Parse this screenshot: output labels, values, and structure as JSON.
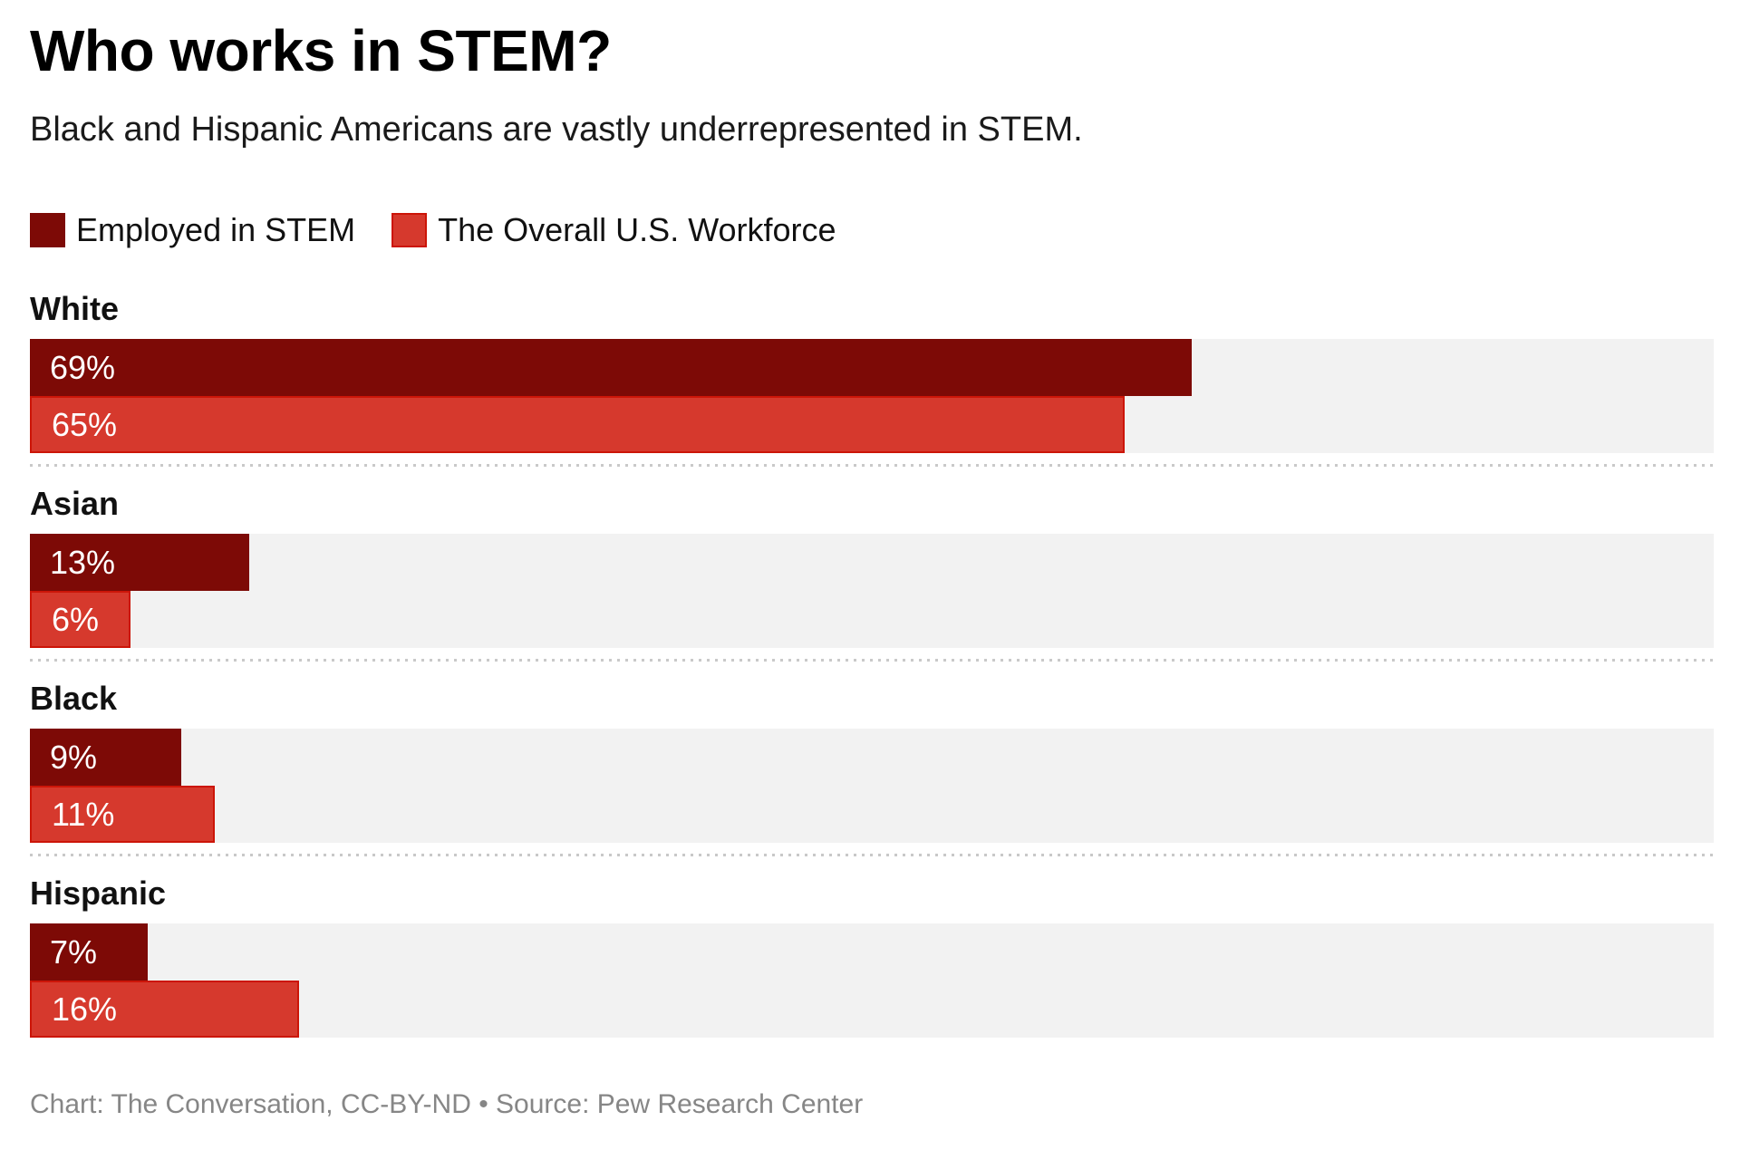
{
  "title": "Who works in STEM?",
  "subtitle": "Black and Hispanic Americans are vastly underrepresented in STEM.",
  "legend": {
    "series1_label": "Employed in STEM",
    "series2_label": "The Overall U.S. Workforce"
  },
  "footer": "Chart: The Conversation, CC-BY-ND • Source: Pew Research Center",
  "colors": {
    "employed_stem": "#7d0a06",
    "overall_workforce_fill": "#d6392d",
    "overall_workforce_border": "#cc1508",
    "track_background": "#f2f2f2",
    "separator_dots": "#c9c9c9",
    "value_label_text": "#ffffff",
    "footer_text": "#868686"
  },
  "chart_data": {
    "type": "bar",
    "orientation": "horizontal",
    "title": "Who works in STEM?",
    "subtitle": "Black and Hispanic Americans are vastly underrepresented in STEM.",
    "categories": [
      "White",
      "Asian",
      "Black",
      "Hispanic"
    ],
    "series": [
      {
        "name": "Employed in STEM",
        "color": "#7d0a06",
        "values": [
          69,
          13,
          9,
          7
        ]
      },
      {
        "name": "The Overall U.S. Workforce",
        "color": "#d6392d",
        "values": [
          65,
          6,
          11,
          16
        ]
      }
    ],
    "value_labels": [
      [
        "69%",
        "65%"
      ],
      [
        "13%",
        "6%"
      ],
      [
        "9%",
        "11%"
      ],
      [
        "7%",
        "16%"
      ]
    ],
    "value_format": "percent",
    "xlim": [
      0,
      100
    ],
    "grid": false,
    "legend_position": "top-left",
    "source": "Pew Research Center",
    "credit": "Chart: The Conversation, CC-BY-ND"
  }
}
